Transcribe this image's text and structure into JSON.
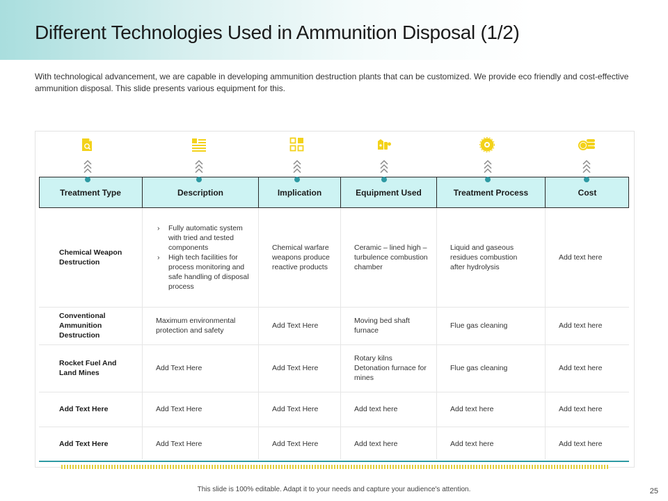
{
  "title": "Different Technologies Used in Ammunition Disposal (1/2)",
  "intro": "With technological advancement, we are capable in developing ammunition destruction plants that can be customized. We provide eco friendly and cost-effective ammunition disposal. This slide presents various equipment for this.",
  "icons": [
    "document-search-icon",
    "list-icon",
    "grid-squares-icon",
    "equipment-icon",
    "gear-icon",
    "coins-icon"
  ],
  "colors": {
    "accent": "#2e9aa3",
    "header_fill": "#cdf3f3",
    "icon_yellow": "#f3d21a",
    "hatch": "#e2cd3a"
  },
  "table": {
    "headers": [
      "Treatment Type",
      "Description",
      "Implication",
      "Equipment Used",
      "Treatment  Process",
      "Cost"
    ],
    "rows": [
      {
        "type": "Chemical Weapon Destruction",
        "description": [
          "Fully automatic system with tried and tested components",
          "High tech facilities  for process monitoring and safe handling of disposal process"
        ],
        "implication": "Chemical warfare weapons produce reactive products",
        "equipment": "Ceramic – lined high – turbulence combustion chamber",
        "process": "Liquid and gaseous residues combustion after hydrolysis",
        "cost": "Add text here"
      },
      {
        "type": "Conventional Ammunition Destruction",
        "description": "Maximum environmental protection and safety",
        "implication": "Add Text Here",
        "equipment": "Moving bed shaft furnace",
        "process": "Flue gas cleaning",
        "cost": "Add text here"
      },
      {
        "type": "Rocket Fuel And Land Mines",
        "description": "Add Text Here",
        "implication": "Add Text Here",
        "equipment": [
          "Rotary kilns",
          "Detonation furnace for mines"
        ],
        "process": "Flue gas cleaning",
        "cost": "Add text here"
      },
      {
        "type": "Add Text Here",
        "description": "Add Text Here",
        "implication": "Add Text Here",
        "equipment": "Add text here",
        "process": "Add text here",
        "cost": "Add text here"
      },
      {
        "type": "Add Text Here",
        "description": "Add Text Here",
        "implication": "Add Text Here",
        "equipment": "Add text here",
        "process": "Add text here",
        "cost": "Add text here"
      }
    ]
  },
  "footer": "This slide is 100% editable.  Adapt it to your needs and capture your audience's attention.",
  "page_number": "25"
}
